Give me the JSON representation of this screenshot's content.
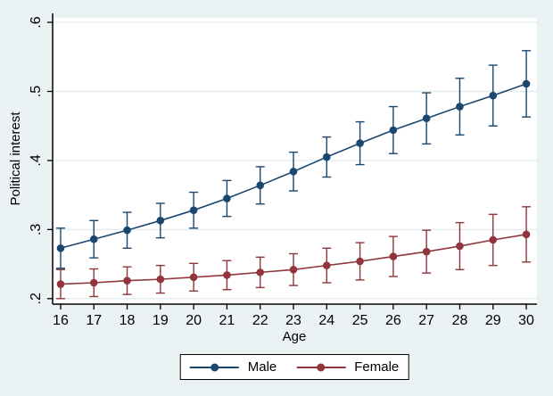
{
  "window": {
    "outer_background": "#eaf2f3"
  },
  "chart_data": {
    "type": "line",
    "title": "",
    "xlabel": "Age",
    "ylabel": "Political interest",
    "grid": true,
    "legend_position": "bottom-center",
    "x": [
      16,
      17,
      18,
      19,
      20,
      21,
      22,
      23,
      24,
      25,
      26,
      27,
      28,
      29,
      30
    ],
    "xticks": [
      "16",
      "17",
      "18",
      "19",
      "20",
      "21",
      "22",
      "23",
      "24",
      "25",
      "26",
      "27",
      "28",
      "29",
      "30"
    ],
    "yticks": [
      0.2,
      0.3,
      0.4,
      0.5,
      0.6
    ],
    "ytick_labels": [
      ".2",
      ".3",
      ".4",
      ".5",
      ".6"
    ],
    "xlim": [
      15.76,
      30.32
    ],
    "ylim": [
      0.192,
      0.613
    ],
    "error_bars": true,
    "series": [
      {
        "name": "Male",
        "color": "#1a476f",
        "values": [
          0.273,
          0.286,
          0.299,
          0.313,
          0.328,
          0.345,
          0.364,
          0.384,
          0.405,
          0.425,
          0.444,
          0.461,
          0.478,
          0.494,
          0.511
        ],
        "ci_low": [
          0.244,
          0.259,
          0.273,
          0.288,
          0.302,
          0.319,
          0.337,
          0.356,
          0.376,
          0.394,
          0.41,
          0.424,
          0.437,
          0.45,
          0.463
        ],
        "ci_high": [
          0.302,
          0.313,
          0.325,
          0.338,
          0.354,
          0.371,
          0.391,
          0.412,
          0.434,
          0.456,
          0.478,
          0.498,
          0.519,
          0.538,
          0.559
        ]
      },
      {
        "name": "Female",
        "color": "#90353b",
        "values": [
          0.221,
          0.223,
          0.226,
          0.228,
          0.231,
          0.234,
          0.238,
          0.242,
          0.248,
          0.254,
          0.261,
          0.268,
          0.276,
          0.285,
          0.293
        ],
        "ci_low": [
          0.2,
          0.203,
          0.206,
          0.208,
          0.211,
          0.213,
          0.216,
          0.219,
          0.223,
          0.227,
          0.232,
          0.237,
          0.242,
          0.248,
          0.253
        ],
        "ci_high": [
          0.242,
          0.243,
          0.246,
          0.248,
          0.251,
          0.255,
          0.26,
          0.265,
          0.273,
          0.281,
          0.29,
          0.299,
          0.31,
          0.322,
          0.333
        ]
      }
    ],
    "colors": {
      "plot_background": "#ffffff",
      "outer_background": "#eaf2f3",
      "gridline": "#e3edee",
      "axis": "#000000"
    }
  }
}
